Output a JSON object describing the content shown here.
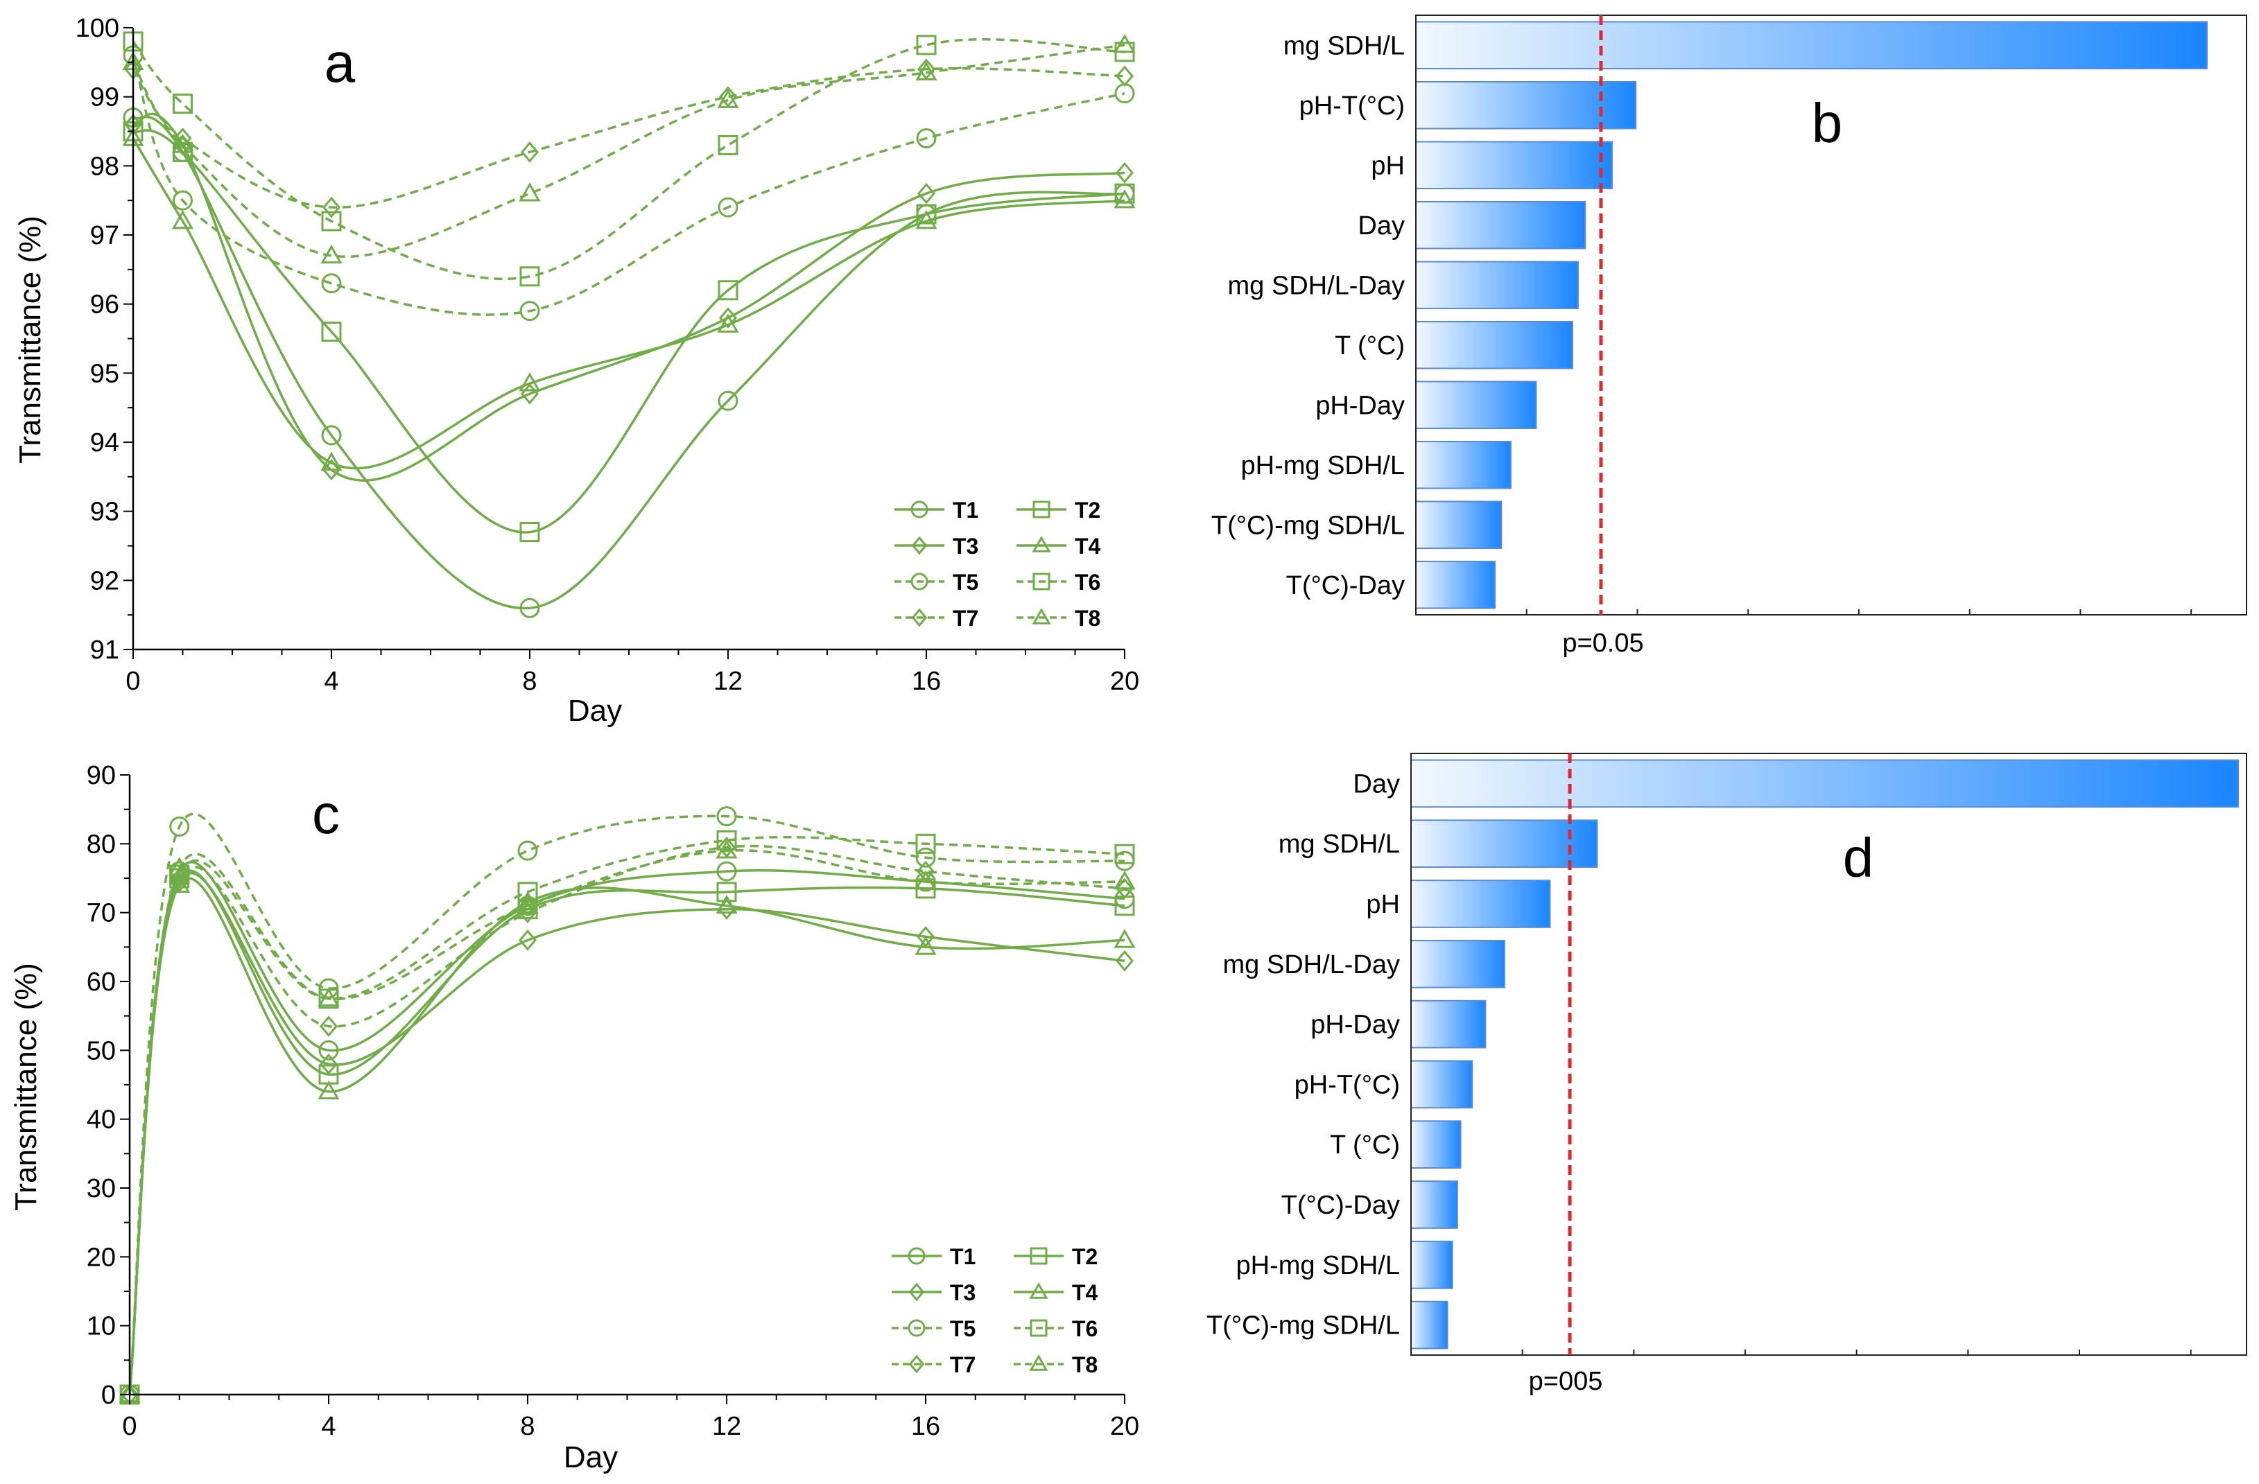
{
  "chart_data": [
    {
      "panel": "a",
      "type": "line",
      "xlabel": "Day",
      "ylabel": "Transmittance (%)",
      "xlim": [
        0,
        20
      ],
      "ylim": [
        91,
        100
      ],
      "xticks": [
        0,
        4,
        8,
        12,
        16,
        20
      ],
      "yticks": [
        91,
        92,
        93,
        94,
        95,
        96,
        97,
        98,
        99,
        100
      ],
      "x": [
        0,
        1,
        4,
        8,
        12,
        16,
        20
      ],
      "series": [
        {
          "name": "T1",
          "marker": "circle",
          "dash": false,
          "values": [
            98.7,
            98.2,
            94.1,
            91.6,
            94.6,
            97.3,
            97.6
          ]
        },
        {
          "name": "T2",
          "marker": "square",
          "dash": false,
          "values": [
            98.5,
            98.2,
            95.6,
            92.7,
            96.2,
            97.3,
            97.6
          ]
        },
        {
          "name": "T3",
          "marker": "diamond",
          "dash": false,
          "values": [
            98.6,
            98.3,
            93.6,
            94.7,
            95.8,
            97.6,
            97.9
          ]
        },
        {
          "name": "T4",
          "marker": "triangle",
          "dash": false,
          "values": [
            98.4,
            97.2,
            93.7,
            94.85,
            95.7,
            97.2,
            97.5
          ]
        },
        {
          "name": "T5",
          "marker": "circle",
          "dash": true,
          "values": [
            99.6,
            97.5,
            96.3,
            95.9,
            97.4,
            98.4,
            99.05
          ]
        },
        {
          "name": "T6",
          "marker": "square",
          "dash": true,
          "values": [
            99.8,
            98.9,
            97.2,
            96.4,
            98.3,
            99.75,
            99.65
          ]
        },
        {
          "name": "T7",
          "marker": "diamond",
          "dash": true,
          "values": [
            99.4,
            98.4,
            97.4,
            98.2,
            99.0,
            99.4,
            99.3
          ]
        },
        {
          "name": "T8",
          "marker": "triangle",
          "dash": true,
          "values": [
            99.5,
            98.3,
            96.7,
            97.6,
            98.95,
            99.35,
            99.75
          ]
        }
      ]
    },
    {
      "panel": "b",
      "type": "bar",
      "orientation": "horizontal",
      "categories": [
        "mg SDH/L",
        "pH-T(°C)",
        "pH",
        "Day",
        "mg SDH/L-Day",
        "T (°C)",
        "pH-Day",
        "pH-mg SDH/L",
        "T(°C)-mg SDH/L",
        "T(°C)-Day"
      ],
      "values": [
        100,
        27.8,
        24.8,
        21.4,
        20.5,
        19.8,
        15.2,
        12.0,
        10.8,
        10.0
      ],
      "xlim": [
        0,
        105
      ],
      "threshold": 23.4,
      "threshold_label": "p=0.05"
    },
    {
      "panel": "c",
      "type": "line",
      "xlabel": "Day",
      "ylabel": "Transmittance (%)",
      "xlim": [
        0,
        20
      ],
      "ylim": [
        0,
        90
      ],
      "xticks": [
        0,
        4,
        8,
        12,
        16,
        20
      ],
      "yticks": [
        0,
        10,
        20,
        30,
        40,
        50,
        60,
        70,
        80,
        90
      ],
      "x": [
        0,
        1,
        4,
        8,
        12,
        16,
        20
      ],
      "series": [
        {
          "name": "T1",
          "marker": "circle",
          "dash": false,
          "values": [
            0,
            76,
            50,
            71,
            76,
            74.5,
            72
          ]
        },
        {
          "name": "T2",
          "marker": "square",
          "dash": false,
          "values": [
            0,
            75,
            46.5,
            70.5,
            73,
            73.5,
            71
          ]
        },
        {
          "name": "T3",
          "marker": "diamond",
          "dash": false,
          "values": [
            0,
            74.5,
            48,
            66,
            70.5,
            66.5,
            63
          ]
        },
        {
          "name": "T4",
          "marker": "triangle",
          "dash": false,
          "values": [
            0,
            74,
            44,
            71.5,
            71,
            65,
            66
          ]
        },
        {
          "name": "T5",
          "marker": "circle",
          "dash": true,
          "values": [
            0,
            82.5,
            59,
            79,
            84,
            78,
            77.5
          ]
        },
        {
          "name": "T6",
          "marker": "square",
          "dash": true,
          "values": [
            0,
            75.5,
            57.5,
            73,
            80.5,
            80,
            78.5
          ]
        },
        {
          "name": "T7",
          "marker": "diamond",
          "dash": true,
          "values": [
            0,
            75,
            53.5,
            70,
            79.5,
            76,
            73.5
          ]
        },
        {
          "name": "T8",
          "marker": "triangle",
          "dash": true,
          "values": [
            0,
            76.5,
            57.5,
            71,
            79,
            74.5,
            74.5
          ]
        }
      ]
    },
    {
      "panel": "d",
      "type": "bar",
      "orientation": "horizontal",
      "categories": [
        "Day",
        "mg SDH/L",
        "pH",
        "mg SDH/L-Day",
        "pH-Day",
        "pH-T(°C)",
        "T (°C)",
        "T(°C)-Day",
        "pH-mg SDH/L",
        "T(°C)-mg SDH/L"
      ],
      "values": [
        100,
        22.5,
        16.8,
        11.3,
        9.0,
        7.4,
        6.0,
        5.6,
        5.0,
        4.4
      ],
      "xlim": [
        0,
        101
      ],
      "threshold": 19.2,
      "threshold_label": "p=005"
    }
  ],
  "legend_labels": [
    "T1",
    "T2",
    "T3",
    "T4",
    "T5",
    "T6",
    "T7",
    "T8"
  ],
  "colors": {
    "series": "#70ad47",
    "bar_light": "#eef6ff",
    "bar_dark": "#1a85ff",
    "bar_edge": "#5b8ad6",
    "threshold": "#e3262d"
  }
}
